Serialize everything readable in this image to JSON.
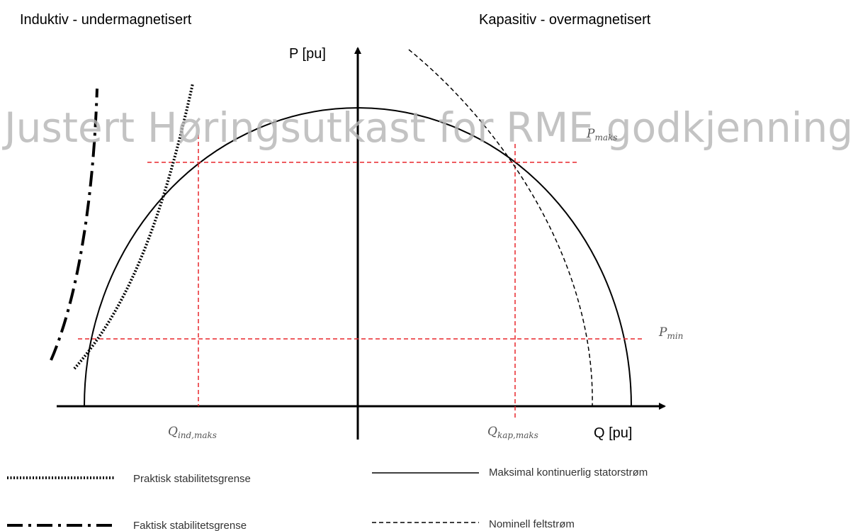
{
  "header": {
    "left": "Induktiv - undermagnetisert",
    "right": "Kapasitiv - overmagnetisert"
  },
  "watermark": "Justert Høringsutkast for RME godkjenning",
  "axes": {
    "y_label": "P [pu]",
    "x_label": "Q [pu]"
  },
  "annotations": {
    "p_max": {
      "symbol": "P",
      "subscript": "maks"
    },
    "p_min": {
      "symbol": "P",
      "subscript": "min"
    },
    "q_ind_max": {
      "symbol": "Q",
      "subscript": "ind,maks"
    },
    "q_cap_max": {
      "symbol": "Q",
      "subscript": "kap,maks"
    }
  },
  "legend": [
    {
      "label": "Praktisk stabilitetsgrense"
    },
    {
      "label": "Faktisk stabilitetsgrense"
    },
    {
      "label": "Maksimal kontinuerlig statorstrøm"
    },
    {
      "label": "Nominell feltstrøm"
    }
  ]
}
